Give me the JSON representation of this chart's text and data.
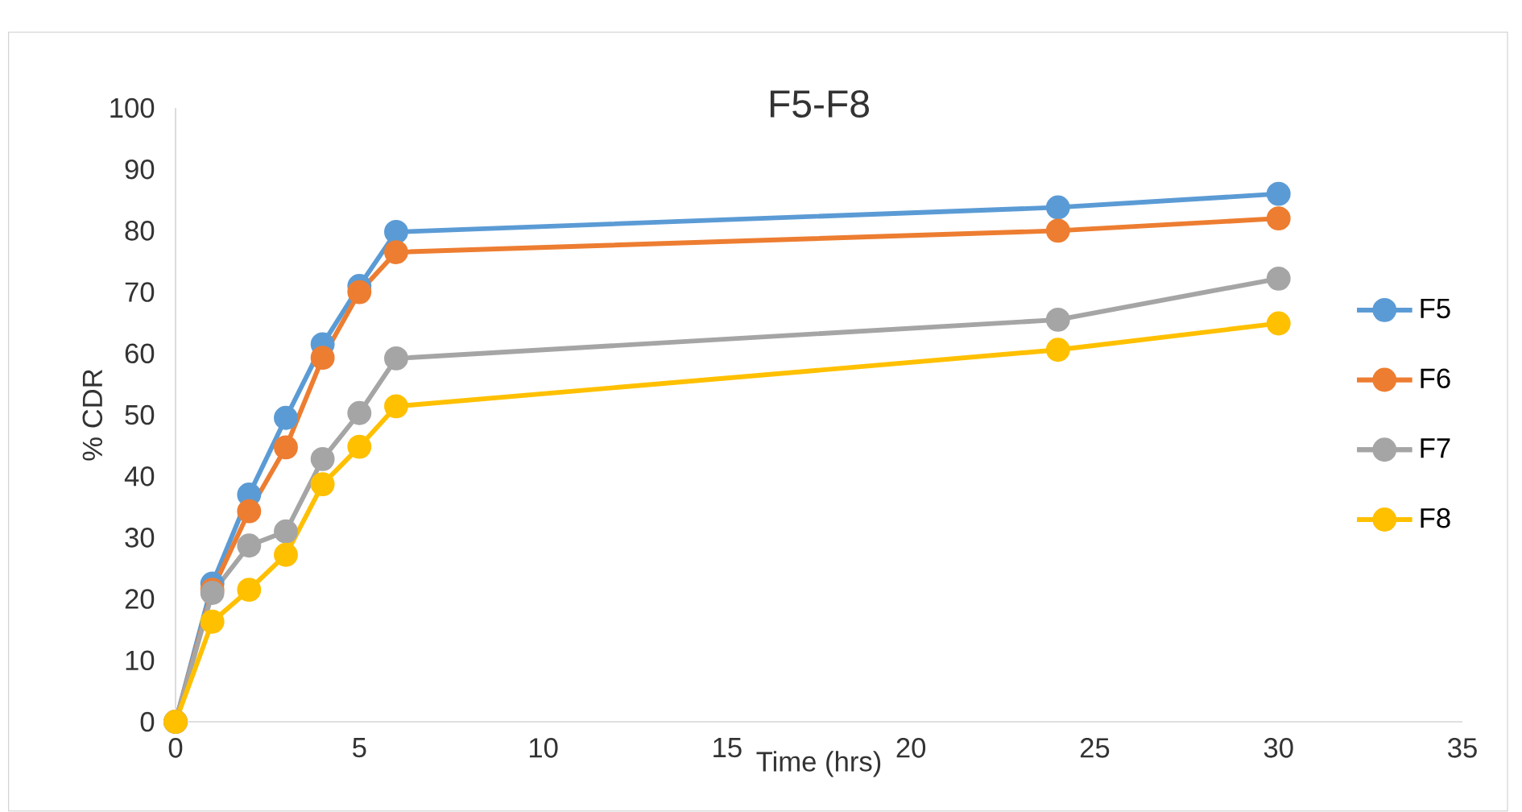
{
  "chart_data": {
    "type": "line",
    "title": "F5-F8",
    "xlabel": "Time (hrs)",
    "ylabel": "% CDR",
    "x": [
      0,
      1,
      2,
      3,
      4,
      5,
      6,
      24,
      30
    ],
    "series": [
      {
        "name": "F5",
        "color": "#5b9bd5",
        "values": [
          0,
          22.5,
          37,
          49.5,
          61.5,
          71,
          79.8,
          83.8,
          86
        ]
      },
      {
        "name": "F6",
        "color": "#ed7d31",
        "values": [
          0,
          21.5,
          34.3,
          44.7,
          59.3,
          70,
          76.5,
          80,
          82
        ]
      },
      {
        "name": "F7",
        "color": "#a5a5a5",
        "values": [
          0,
          21,
          28.7,
          31,
          42.8,
          50.3,
          59.2,
          65.5,
          72.2
        ]
      },
      {
        "name": "F8",
        "color": "#ffc000",
        "values": [
          0,
          16.3,
          21.5,
          27.2,
          38.7,
          44.8,
          51.4,
          60.6,
          64.9
        ]
      }
    ],
    "xlim": [
      0,
      35
    ],
    "xticks": [
      0,
      5,
      10,
      15,
      20,
      25,
      30,
      35
    ],
    "ylim": [
      0,
      100
    ],
    "yticks": [
      0,
      10,
      20,
      30,
      40,
      50,
      60,
      70,
      80,
      90,
      100
    ],
    "grid": false,
    "legend": "right",
    "marker": "circle",
    "line_style": "solid"
  }
}
